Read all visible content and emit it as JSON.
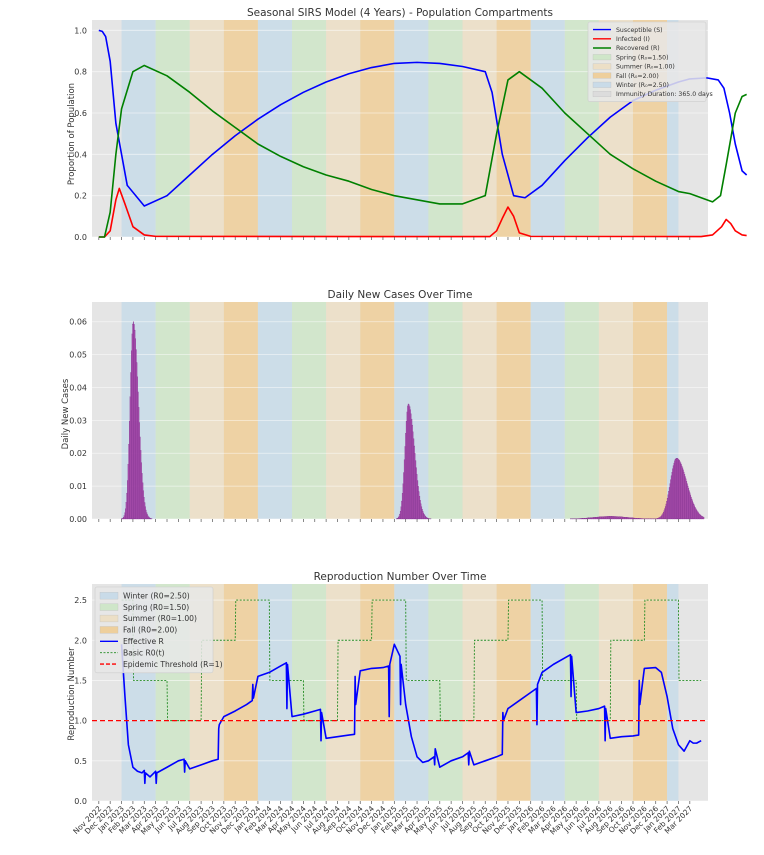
{
  "chart_data": [
    {
      "type": "line",
      "title": "Seasonal SIRS Model (4 Years) - Population Compartments",
      "xlabel": "",
      "ylabel": "Proportion of Population",
      "ylim": [
        0,
        1.05
      ],
      "yticks": [
        "0.0",
        "0.2",
        "0.4",
        "0.6",
        "0.8",
        "1.0"
      ],
      "legend_position": "top-right",
      "series": [
        {
          "name": "Susceptible (S)",
          "color": "#0000ff",
          "x": [
            0,
            0.3,
            0.6,
            1,
            1.5,
            2.5,
            4,
            6,
            8,
            10,
            12,
            14,
            16,
            18,
            20,
            22,
            24,
            26,
            28,
            30,
            32,
            34,
            34.6,
            35.5,
            36.5,
            37.5,
            39,
            41,
            43,
            45,
            47,
            49,
            51,
            52,
            53.5,
            54.5,
            55,
            55.5,
            56,
            56.6,
            57
          ],
          "values": [
            1.0,
            0.995,
            0.97,
            0.85,
            0.55,
            0.25,
            0.15,
            0.2,
            0.3,
            0.4,
            0.49,
            0.57,
            0.64,
            0.7,
            0.75,
            0.79,
            0.82,
            0.84,
            0.845,
            0.84,
            0.825,
            0.8,
            0.7,
            0.4,
            0.2,
            0.19,
            0.25,
            0.37,
            0.48,
            0.58,
            0.66,
            0.71,
            0.75,
            0.765,
            0.77,
            0.76,
            0.72,
            0.6,
            0.45,
            0.32,
            0.3
          ]
        },
        {
          "name": "Infected (I)",
          "color": "#ff0000",
          "x": [
            0,
            0.5,
            1,
            1.5,
            1.8,
            2.3,
            3,
            4,
            5,
            34.4,
            35,
            35.5,
            36,
            36.5,
            37,
            38,
            53,
            54,
            54.8,
            55.2,
            55.6,
            56,
            56.6,
            57
          ],
          "values": [
            0.0,
            0.0,
            0.03,
            0.18,
            0.235,
            0.16,
            0.05,
            0.01,
            0.003,
            0.002,
            0.03,
            0.09,
            0.145,
            0.1,
            0.02,
            0.003,
            0.002,
            0.01,
            0.05,
            0.085,
            0.065,
            0.03,
            0.01,
            0.007
          ]
        },
        {
          "name": "Recovered (R)",
          "color": "#008000",
          "x": [
            0,
            0.5,
            1,
            1.5,
            2,
            3,
            4,
            6,
            8,
            10,
            12,
            14,
            16,
            18,
            20,
            22,
            24,
            26,
            28,
            30,
            32,
            34,
            35,
            36,
            37,
            39,
            41,
            43,
            45,
            47,
            49,
            51,
            52,
            53,
            54,
            54.7,
            55.2,
            56,
            56.6,
            57
          ],
          "values": [
            0.0,
            0.0,
            0.12,
            0.4,
            0.62,
            0.8,
            0.83,
            0.78,
            0.7,
            0.61,
            0.53,
            0.45,
            0.39,
            0.34,
            0.3,
            0.27,
            0.23,
            0.2,
            0.18,
            0.16,
            0.16,
            0.2,
            0.5,
            0.76,
            0.8,
            0.72,
            0.6,
            0.5,
            0.4,
            0.33,
            0.27,
            0.22,
            0.21,
            0.19,
            0.17,
            0.2,
            0.35,
            0.6,
            0.68,
            0.69
          ]
        }
      ]
    },
    {
      "type": "bar",
      "title": "Daily New Cases Over Time",
      "xlabel": "",
      "ylabel": "Daily New Cases",
      "ylim": [
        0,
        0.066
      ],
      "yticks": [
        "0.00",
        "0.01",
        "0.02",
        "0.03",
        "0.04",
        "0.05",
        "0.06"
      ],
      "color": "#aa44aa",
      "peaks": [
        {
          "center_month": 3.0,
          "peak": 0.06,
          "rise_width_months": 0.28,
          "fall_width_months": 0.45
        },
        {
          "center_month": 27.2,
          "peak": 0.035,
          "rise_width_months": 0.3,
          "fall_width_months": 0.55
        },
        {
          "center_month": 45.0,
          "peak": 0.0008,
          "rise_width_months": 1.5,
          "fall_width_months": 1.5
        },
        {
          "center_month": 50.8,
          "peak": 0.0185,
          "rise_width_months": 0.55,
          "fall_width_months": 0.9
        }
      ]
    },
    {
      "type": "line",
      "title": "Reproduction Number Over Time",
      "xlabel": "",
      "ylabel": "Reproduction Number",
      "ylim": [
        0,
        2.7
      ],
      "yticks": [
        "0.0",
        "0.5",
        "1.0",
        "1.5",
        "2.0",
        "2.5"
      ],
      "legend_position": "top-left",
      "threshold": 1.0,
      "series": [
        {
          "name": "Effective R",
          "color": "#0000ff",
          "x": [
            2.0,
            2.3,
            2.6,
            3.0,
            3.4,
            3.8,
            4.0,
            4.05,
            4.1,
            4.5,
            5.0,
            5.05,
            5.1,
            6,
            7,
            7.5,
            7.55,
            7.6,
            8,
            9,
            10,
            10.5,
            10.55,
            10.6,
            11,
            12,
            13,
            13.5,
            13.55,
            13.6,
            14,
            15,
            16,
            16.5,
            16.55,
            16.6,
            17,
            18,
            19,
            19.5,
            19.55,
            19.6,
            20,
            21,
            22,
            22.5,
            22.55,
            22.6,
            23,
            24,
            25,
            25.5,
            25.55,
            25.6,
            26,
            26.5,
            26.55,
            26.6,
            27,
            27.5,
            28,
            28.5,
            29,
            29.5,
            29.55,
            29.6,
            30,
            31,
            32,
            32.5,
            32.55,
            32.6,
            33,
            34,
            35,
            35.5,
            35.55,
            35.6,
            36,
            37,
            38,
            38.5,
            38.55,
            38.6,
            39,
            40,
            41,
            41.5,
            41.55,
            41.6,
            42,
            43,
            44,
            44.5,
            44.55,
            44.6,
            45,
            46,
            47,
            47.5,
            47.55,
            47.6,
            48,
            49,
            49.5,
            50,
            50.5,
            51,
            51.5,
            52,
            52.3,
            52.6,
            53
          ],
          "values": [
            1.95,
            1.3,
            0.7,
            0.42,
            0.37,
            0.35,
            0.38,
            0.22,
            0.35,
            0.3,
            0.37,
            0.22,
            0.35,
            0.42,
            0.5,
            0.52,
            0.36,
            0.5,
            0.4,
            0.45,
            0.5,
            0.52,
            0.9,
            0.95,
            1.05,
            1.12,
            1.2,
            1.25,
            1.45,
            1.28,
            1.55,
            1.6,
            1.68,
            1.72,
            1.15,
            1.7,
            1.05,
            1.08,
            1.12,
            1.14,
            0.75,
            1.1,
            0.78,
            0.8,
            0.82,
            0.83,
            1.55,
            1.2,
            1.62,
            1.65,
            1.66,
            1.68,
            1.05,
            1.7,
            1.95,
            1.8,
            1.2,
            1.7,
            1.2,
            0.8,
            0.55,
            0.48,
            0.5,
            0.55,
            0.45,
            0.65,
            0.42,
            0.5,
            0.55,
            0.6,
            0.45,
            0.62,
            0.45,
            0.5,
            0.55,
            0.58,
            1.1,
            1.0,
            1.15,
            1.25,
            1.35,
            1.4,
            0.95,
            1.45,
            1.6,
            1.7,
            1.78,
            1.82,
            1.3,
            1.8,
            1.1,
            1.12,
            1.15,
            1.18,
            0.75,
            1.15,
            0.78,
            0.8,
            0.81,
            0.82,
            1.5,
            1.2,
            1.65,
            1.66,
            1.6,
            1.3,
            0.9,
            0.7,
            0.62,
            0.75,
            0.72,
            0.72,
            0.75
          ]
        },
        {
          "name": "Basic R0(t)",
          "color": "#228b22",
          "style": "dotted",
          "x": [
            2.0,
            3.0,
            3.05,
            6.0,
            6.05,
            9.0,
            9.05,
            12.0,
            12.05,
            15.0,
            15.05,
            18.0,
            18.05,
            21.0,
            21.05,
            24.0,
            24.05,
            27.0,
            27.05,
            30.0,
            30.05,
            33.0,
            33.05,
            36.0,
            36.05,
            39.0,
            39.05,
            42.0,
            42.05,
            45.0,
            45.05,
            48.0,
            48.05,
            51.0,
            51.05,
            53.0
          ],
          "values": [
            2.5,
            2.5,
            1.5,
            1.5,
            1.0,
            1.0,
            2.0,
            2.0,
            2.5,
            2.5,
            1.5,
            1.5,
            1.0,
            1.0,
            2.0,
            2.0,
            2.5,
            2.5,
            1.5,
            1.5,
            1.0,
            1.0,
            2.0,
            2.0,
            2.5,
            2.5,
            1.5,
            1.5,
            1.0,
            1.0,
            2.0,
            2.0,
            2.5,
            2.5,
            1.5,
            1.5
          ]
        },
        {
          "name": "Epidemic Threshold (R=1)",
          "color": "#ff0000",
          "style": "dashed",
          "values": [
            1.0
          ]
        }
      ]
    }
  ],
  "x_axis": {
    "start_month": "Nov 2022",
    "tick_labels": [
      "Nov 2022",
      "Dec 2022",
      "Jan 2023",
      "Feb 2023",
      "Mar 2023",
      "Apr 2023",
      "May 2023",
      "Jun 2023",
      "Jul 2023",
      "Aug 2023",
      "Sep 2023",
      "Oct 2023",
      "Nov 2023",
      "Dec 2023",
      "Jan 2024",
      "Feb 2024",
      "Mar 2024",
      "Apr 2024",
      "May 2024",
      "Jun 2024",
      "Jul 2024",
      "Aug 2024",
      "Sep 2024",
      "Oct 2024",
      "Nov 2024",
      "Dec 2024",
      "Jan 2025",
      "Feb 2025",
      "Mar 2025",
      "Apr 2025",
      "May 2025",
      "Jun 2025",
      "Jul 2025",
      "Aug 2025",
      "Sep 2025",
      "Oct 2025",
      "Nov 2025",
      "Dec 2025",
      "Jan 2026",
      "Feb 2026",
      "Mar 2026",
      "Apr 2026",
      "May 2026",
      "Jun 2026",
      "Jul 2026",
      "Aug 2026",
      "Sep 2026",
      "Oct 2026",
      "Nov 2026",
      "Dec 2026",
      "Jan 2027",
      "Feb 2027",
      "Mar 2027"
    ],
    "range_months": [
      -0.6,
      53.6
    ]
  },
  "seasons": {
    "bands": [
      {
        "season": "winter",
        "start": 2.0,
        "end": 5.0
      },
      {
        "season": "spring",
        "start": 5.0,
        "end": 8.0
      },
      {
        "season": "summer",
        "start": 8.0,
        "end": 11.0
      },
      {
        "season": "fall",
        "start": 11.0,
        "end": 14.0
      },
      {
        "season": "winter",
        "start": 14.0,
        "end": 17.0
      },
      {
        "season": "spring",
        "start": 17.0,
        "end": 20.0
      },
      {
        "season": "summer",
        "start": 20.0,
        "end": 23.0
      },
      {
        "season": "fall",
        "start": 23.0,
        "end": 26.0
      },
      {
        "season": "winter",
        "start": 26.0,
        "end": 29.0
      },
      {
        "season": "spring",
        "start": 29.0,
        "end": 32.0
      },
      {
        "season": "summer",
        "start": 32.0,
        "end": 35.0
      },
      {
        "season": "fall",
        "start": 35.0,
        "end": 38.0
      },
      {
        "season": "winter",
        "start": 38.0,
        "end": 41.0
      },
      {
        "season": "spring",
        "start": 41.0,
        "end": 44.0
      },
      {
        "season": "summer",
        "start": 44.0,
        "end": 47.0
      },
      {
        "season": "fall",
        "start": 47.0,
        "end": 50.0
      },
      {
        "season": "winter",
        "start": 50.0,
        "end": 51.0
      }
    ],
    "colors": {
      "winter": "#c9dbe8",
      "spring": "#cfe6c9",
      "summer": "#ecdfc6",
      "fall": "#eecf9c",
      "background": "#e5e5e5"
    }
  },
  "legend1": {
    "items": [
      {
        "label": "Susceptible (S)",
        "kind": "line",
        "color": "#0000ff"
      },
      {
        "label": "Infected (I)",
        "kind": "line",
        "color": "#ff0000"
      },
      {
        "label": "Recovered (R)",
        "kind": "line",
        "color": "#008000"
      },
      {
        "label": "Spring (R₀=1.50)",
        "kind": "patch",
        "color": "#cfe6c9"
      },
      {
        "label": "Summer (R₀=1.00)",
        "kind": "patch",
        "color": "#ecdfc6"
      },
      {
        "label": "Fall (R₀=2.00)",
        "kind": "patch",
        "color": "#eecf9c"
      },
      {
        "label": "Winter (R₀=2.50)",
        "kind": "patch",
        "color": "#c9dbe8"
      },
      {
        "label": "Immunity Duration: 365.0 days",
        "kind": "patch",
        "color": "#dcdcdc"
      }
    ]
  },
  "legend3": {
    "items": [
      {
        "label": "Winter (R0=2.50)",
        "kind": "patch",
        "color": "#c9dbe8"
      },
      {
        "label": "Spring (R0=1.50)",
        "kind": "patch",
        "color": "#cfe6c9"
      },
      {
        "label": "Summer (R0=1.00)",
        "kind": "patch",
        "color": "#ecdfc6"
      },
      {
        "label": "Fall (R0=2.00)",
        "kind": "patch",
        "color": "#eecf9c"
      },
      {
        "label": "Effective R",
        "kind": "line",
        "color": "#0000ff"
      },
      {
        "label": "Basic R0(t)",
        "kind": "dotted",
        "color": "#228b22"
      },
      {
        "label": "Epidemic Threshold (R=1)",
        "kind": "dashed",
        "color": "#ff0000"
      }
    ]
  }
}
